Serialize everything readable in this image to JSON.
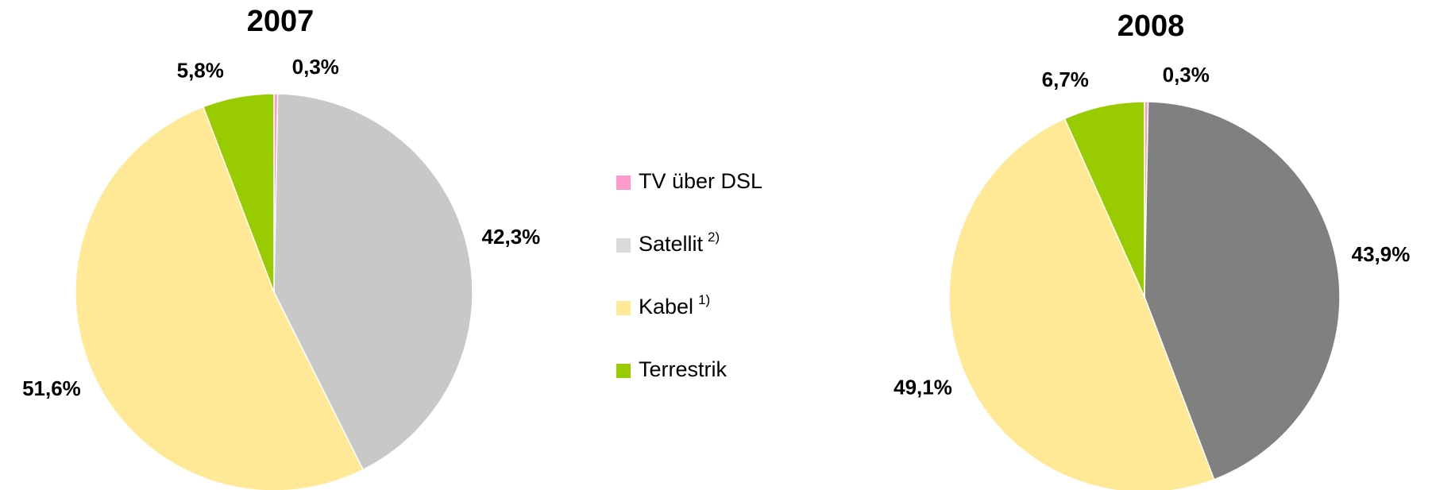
{
  "legend": {
    "items": [
      {
        "name": "TV über DSL",
        "color": "#ff99cc"
      },
      {
        "name": "Satellit",
        "note": "2)",
        "color": "#d9d9d9"
      },
      {
        "name": "Kabel",
        "note": "1)",
        "color": "#ffe896"
      },
      {
        "name": "Terrestrik",
        "color": "#99cc00"
      }
    ]
  },
  "chart_data": [
    {
      "type": "pie",
      "title": "2007",
      "values": [
        0.3,
        42.3,
        51.6,
        5.8
      ],
      "value_labels": [
        "0,3%",
        "42,3%",
        "51,6%",
        "5,8%"
      ],
      "colors": [
        "#ff99cc",
        "#c8c8c8",
        "#ffe896",
        "#99cc00"
      ]
    },
    {
      "type": "pie",
      "title": "2008",
      "values": [
        0.3,
        43.9,
        49.1,
        6.7
      ],
      "value_labels": [
        "0,3%",
        "43,9%",
        "49,1%",
        "6,7%"
      ],
      "colors": [
        "#ff99cc",
        "#808080",
        "#ffe896",
        "#99cc00"
      ]
    }
  ]
}
